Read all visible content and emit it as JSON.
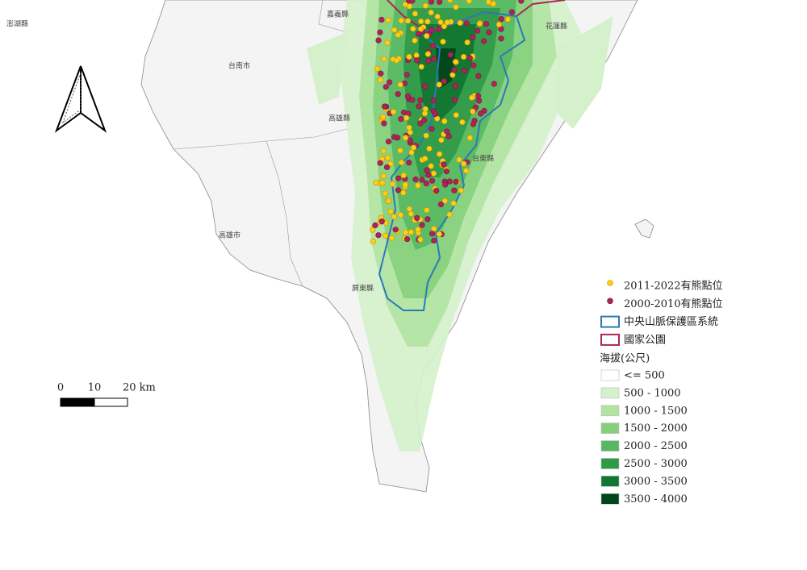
{
  "map": {
    "place_labels": [
      "澎湖縣",
      "嘉義縣",
      "花蓮縣",
      "台南市",
      "高雄縣",
      "台東縣",
      "高雄市",
      "屏東縣"
    ],
    "legend": {
      "items": [
        {
          "label": "2011-2022有熊點位",
          "color": "#f7d117"
        },
        {
          "label": "2000-2010有熊點位",
          "color": "#ad2457"
        },
        {
          "label": "中央山脈保護區系統",
          "color": "#2a7ab8"
        },
        {
          "label": "國家公園",
          "color": "#ad2457"
        }
      ],
      "elevation_title": "海拔(公尺)",
      "elevation_classes": [
        {
          "label": "<= 500",
          "color": "#ffffff"
        },
        {
          "label": "500 - 1000",
          "color": "#d5f1cb"
        },
        {
          "label": "1000 - 1500",
          "color": "#b2e3a3"
        },
        {
          "label": "1500 - 2000",
          "color": "#86d07c"
        },
        {
          "label": "2000 - 2500",
          "color": "#57b862"
        },
        {
          "label": "2500 - 3000",
          "color": "#2f9a48"
        },
        {
          "label": "3000 - 3500",
          "color": "#107630"
        },
        {
          "label": "3500 - 4000",
          "color": "#00441b"
        }
      ]
    },
    "scale_bar": {
      "labels": [
        "0",
        "10",
        "20 km"
      ]
    }
  }
}
